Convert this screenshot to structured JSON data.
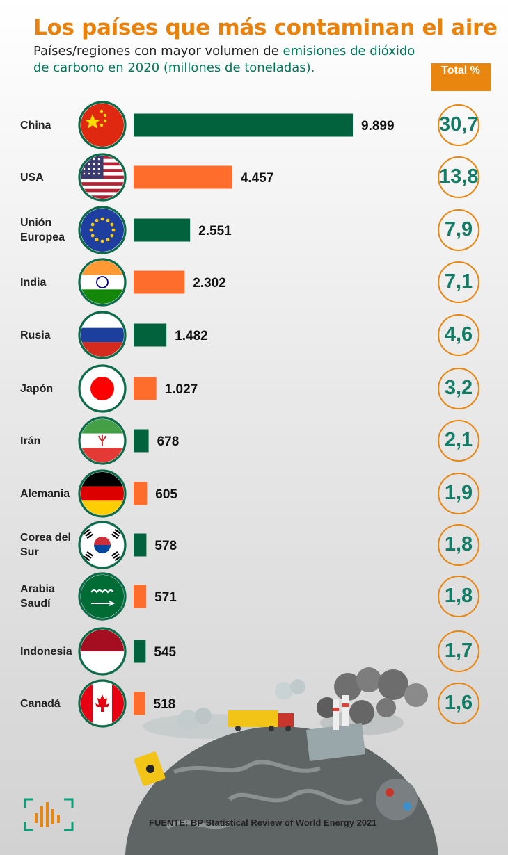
{
  "header": {
    "title": "Los países que más contaminan el aire",
    "subtitle_plain": "Países/regiones con mayor volumen de ",
    "subtitle_highlight": "emisiones de dióxido de carbono en 2020 (millones de toneladas).",
    "total_label": "Total %"
  },
  "footer": {
    "source": "FUENTE: BP Statistical Review of World Energy 2021"
  },
  "colors": {
    "title": "#e8820c",
    "bar_green": "#02623d",
    "bar_orange": "#ff6d2d",
    "circle_border": "#e8860f",
    "pct_text": "#137c67"
  },
  "chart_data": {
    "type": "bar",
    "orientation": "horizontal",
    "categories": [
      "China",
      "USA",
      "Unión Europea",
      "India",
      "Rusia",
      "Japón",
      "Irán",
      "Alemania",
      "Corea del Sur",
      "Arabia Saudí",
      "Indonesia",
      "Canadá"
    ],
    "values": [
      9899,
      4457,
      2551,
      2302,
      1482,
      1027,
      678,
      605,
      578,
      571,
      545,
      518
    ],
    "value_labels": [
      "9.899",
      "4.457",
      "2.551",
      "2.302",
      "1.482",
      "1.027",
      "678",
      "605",
      "578",
      "571",
      "545",
      "518"
    ],
    "percent_total": [
      "30,7",
      "13,8",
      "7,9",
      "7,1",
      "4,6",
      "3,2",
      "2,1",
      "1,9",
      "1,8",
      "1,8",
      "1,7",
      "1,6"
    ],
    "bar_colors": [
      "#02623d",
      "#ff6d2d",
      "#02623d",
      "#ff6d2d",
      "#02623d",
      "#ff6d2d",
      "#02623d",
      "#ff6d2d",
      "#02623d",
      "#ff6d2d",
      "#02623d",
      "#ff6d2d"
    ],
    "flag_icons": [
      "china-flag-icon",
      "usa-flag-icon",
      "eu-flag-icon",
      "india-flag-icon",
      "russia-flag-icon",
      "japan-flag-icon",
      "iran-flag-icon",
      "germany-flag-icon",
      "south-korea-flag-icon",
      "saudi-arabia-flag-icon",
      "indonesia-flag-icon",
      "canada-flag-icon"
    ],
    "grid": false,
    "legend": "none"
  }
}
